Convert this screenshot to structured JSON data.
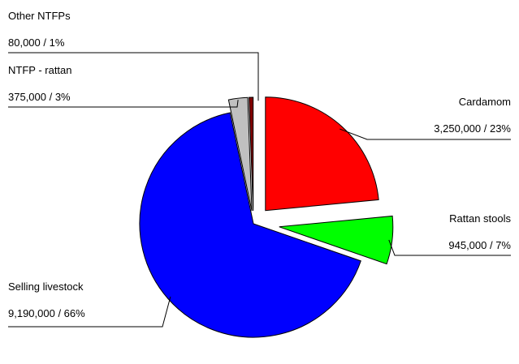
{
  "chart_data": {
    "type": "pie",
    "exploded": true,
    "legend": "none",
    "slices": [
      {
        "name": "Cardamom",
        "value": 3250000,
        "value_label": "3,250,000 / 23%",
        "color": "#ff0000"
      },
      {
        "name": "Rattan stools",
        "value": 945000,
        "value_label": "945,000 / 7%",
        "color": "#00ff00"
      },
      {
        "name": "Selling livestock",
        "value": 9190000,
        "value_label": "9,190,000 / 66%",
        "color": "#0000ff"
      },
      {
        "name": "NTFP - rattan",
        "value": 375000,
        "value_label": "375,000 / 3%",
        "color": "#c0c0c0"
      },
      {
        "name": "Other NTFPs",
        "value": 80000,
        "value_label": "80,000 / 1%",
        "color": "#800000"
      }
    ]
  }
}
